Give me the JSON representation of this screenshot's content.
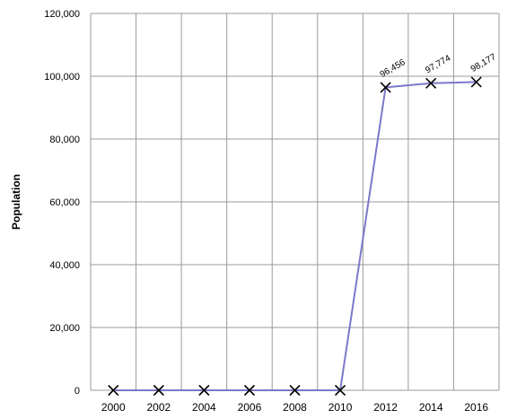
{
  "colors": {
    "line": "#7b78c8",
    "marker": "#000000",
    "grid": "#9a9a9a"
  },
  "chart_data": {
    "type": "line",
    "title": "",
    "xlabel": "",
    "ylabel": "Population",
    "grid": true,
    "legend": "none",
    "x": [
      "2000",
      "2002",
      "2004",
      "2006",
      "2008",
      "2010",
      "2012",
      "2014",
      "2016"
    ],
    "ylim": [
      0,
      120000
    ],
    "yticks": [
      "0",
      "20,000",
      "40,000",
      "60,000",
      "80,000",
      "100,000",
      "120,000"
    ],
    "series": [
      {
        "values": [
          0,
          0,
          0,
          0,
          0,
          0,
          96456,
          97774,
          98177
        ],
        "data_labels": [
          "",
          "",
          "",
          "",
          "",
          "",
          "96,456",
          "97,774",
          "98,177"
        ],
        "marker": "x-icon"
      }
    ]
  }
}
